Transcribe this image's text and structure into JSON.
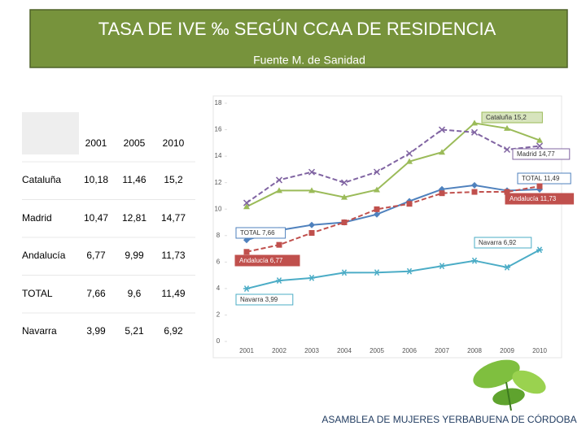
{
  "header": {
    "title": "TASA DE IVE ‰ SEGÚN CCAA DE  RESIDENCIA",
    "subtitle": "Fuente M. de Sanidad"
  },
  "table": {
    "columns": [
      "2001",
      "2005",
      "2010"
    ],
    "rows": [
      [
        "Cataluña",
        "10,18",
        "11,46",
        "15,2"
      ],
      [
        "Madrid",
        "10,47",
        "12,81",
        "14,77"
      ],
      [
        "Andalucía",
        "6,77",
        "9,99",
        "11,73"
      ],
      [
        "TOTAL",
        "7,66",
        "9,6",
        "11,49"
      ],
      [
        "Navarra",
        "3,99",
        "5,21",
        "6,92"
      ]
    ]
  },
  "chart_data": {
    "type": "line",
    "categories": [
      "2001",
      "2002",
      "2003",
      "2004",
      "2005",
      "2006",
      "2007",
      "2008",
      "2009",
      "2010"
    ],
    "ylim": [
      0,
      18
    ],
    "yticks": [
      0,
      2,
      4,
      6,
      8,
      10,
      12,
      14,
      16,
      18
    ],
    "series": [
      {
        "name": "Cataluña",
        "color": "#9bbb59",
        "marker": "triangle",
        "dash": false,
        "values": [
          10.18,
          11.4,
          11.4,
          10.9,
          11.46,
          13.6,
          14.3,
          16.5,
          16.1,
          15.2
        ],
        "value_labels": [
          null,
          null,
          null,
          null,
          null,
          null,
          null,
          null,
          null,
          "Cataluña  15,2"
        ]
      },
      {
        "name": "Madrid",
        "color": "#8064a2",
        "marker": "x",
        "dash": true,
        "values": [
          10.47,
          12.2,
          12.8,
          12.0,
          12.81,
          14.2,
          16.0,
          15.8,
          14.5,
          14.77
        ],
        "value_labels": [
          null,
          null,
          null,
          null,
          null,
          null,
          null,
          null,
          null,
          "Madrid  14,77"
        ]
      },
      {
        "name": "TOTAL",
        "color": "#4f81bd",
        "marker": "diamond",
        "dash": false,
        "values": [
          7.66,
          8.4,
          8.8,
          9.0,
          9.6,
          10.6,
          11.5,
          11.8,
          11.4,
          11.49
        ],
        "value_labels": [
          "TOTAL  7,66",
          null,
          null,
          null,
          null,
          null,
          null,
          null,
          null,
          "TOTAL  11,49"
        ]
      },
      {
        "name": "Andalucía",
        "color": "#c0504d",
        "marker": "square",
        "dash": true,
        "values": [
          6.77,
          7.3,
          8.2,
          9.0,
          9.99,
          10.4,
          11.2,
          11.3,
          11.3,
          11.73
        ],
        "value_labels": [
          "Andalucía  6,77",
          null,
          null,
          null,
          null,
          null,
          null,
          null,
          null,
          "Andalucía  11,73"
        ]
      },
      {
        "name": "Navarra",
        "color": "#4bacc6",
        "marker": "star",
        "dash": false,
        "values": [
          3.99,
          4.6,
          4.8,
          5.2,
          5.21,
          5.3,
          5.7,
          6.1,
          5.6,
          6.92
        ],
        "value_labels": [
          "Navarra  3,99",
          null,
          null,
          null,
          null,
          null,
          null,
          null,
          null,
          "Navarra  6,92"
        ]
      }
    ]
  },
  "footer": "ASAMBLEA DE MUJERES YERBABUENA DE CÓRDOBA"
}
